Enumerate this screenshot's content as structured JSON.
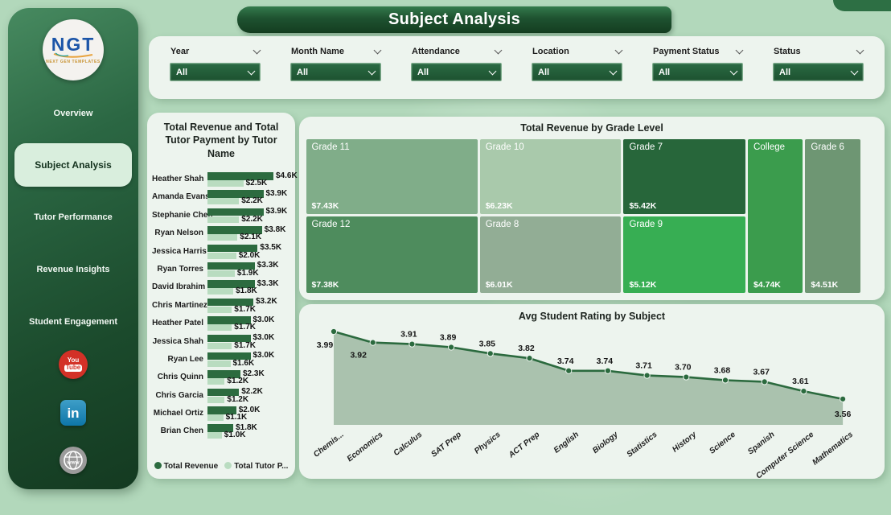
{
  "header": {
    "title": "Subject Analysis"
  },
  "logo": {
    "text": "NGT",
    "tagline": "NEXT GEN TEMPLATES"
  },
  "sidebar": {
    "items": [
      {
        "label": "Overview",
        "active": false
      },
      {
        "label": "Subject Analysis",
        "active": true
      },
      {
        "label": "Tutor Performance",
        "active": false
      },
      {
        "label": "Revenue Insights",
        "active": false
      },
      {
        "label": "Student Engagement",
        "active": false
      }
    ],
    "social": [
      {
        "name": "youtube",
        "text_top": "You",
        "text_bottom": "Tube"
      },
      {
        "name": "linkedin",
        "text": "in"
      },
      {
        "name": "website",
        "text": "www"
      }
    ]
  },
  "filters": [
    {
      "label": "Year",
      "value": "All"
    },
    {
      "label": "Month Name",
      "value": "All"
    },
    {
      "label": "Attendance",
      "value": "All"
    },
    {
      "label": "Location",
      "value": "All"
    },
    {
      "label": "Payment Status",
      "value": "All"
    },
    {
      "label": "Status",
      "value": "All"
    }
  ],
  "colors": {
    "accent_dark_green": "#2c6b3f",
    "accent_light_green": "#b9dcc0",
    "card_bg": "#edf4ee",
    "page_bg": "#b2d8bb",
    "line_color": "#2b6a3e",
    "area_color": "#a6bfaa"
  },
  "chart_data": [
    {
      "type": "bar",
      "title": "Total Revenue and Total Tutor Payment by Tutor Name",
      "orientation": "horizontal",
      "xlim": [
        0,
        4.6
      ],
      "categories": [
        "Heather Shah",
        "Amanda Evans",
        "Stephanie Chen",
        "Ryan Nelson",
        "Jessica Harris",
        "Ryan Torres",
        "David Ibrahim",
        "Chris Martinez",
        "Heather Patel",
        "Jessica Shah",
        "Ryan Lee",
        "Chris Quinn",
        "Chris Garcia",
        "Michael Ortiz",
        "Brian Chen"
      ],
      "series": [
        {
          "name": "Total Revenue",
          "color": "#2c6b3f",
          "values": [
            4.6,
            3.9,
            3.9,
            3.8,
            3.5,
            3.3,
            3.3,
            3.2,
            3.0,
            3.0,
            3.0,
            2.3,
            2.2,
            2.0,
            1.8
          ],
          "labels": [
            "$4.6K",
            "$3.9K",
            "$3.9K",
            "$3.8K",
            "$3.5K",
            "$3.3K",
            "$3.3K",
            "$3.2K",
            "$3.0K",
            "$3.0K",
            "$3.0K",
            "$2.3K",
            "$2.2K",
            "$2.0K",
            "$1.8K"
          ]
        },
        {
          "name": "Total Tutor Payment",
          "legend_label": "Total Tutor P...",
          "color": "#b9dcc0",
          "values": [
            2.5,
            2.2,
            2.2,
            2.1,
            2.0,
            1.9,
            1.8,
            1.7,
            1.7,
            1.7,
            1.6,
            1.2,
            1.2,
            1.1,
            1.0
          ],
          "labels": [
            "$2.5K",
            "$2.2K",
            "$2.2K",
            "$2.1K",
            "$2.0K",
            "$1.9K",
            "$1.8K",
            "$1.7K",
            "$1.7K",
            "$1.7K",
            "$1.6K",
            "$1.2K",
            "$1.2K",
            "$1.1K",
            "$1.0K"
          ]
        }
      ],
      "legend_position": "bottom"
    },
    {
      "type": "treemap",
      "title": "Total Revenue by Grade Level",
      "items": [
        {
          "label": "Grade 11",
          "value": 7.43,
          "value_label": "$7.43K",
          "color": "#80ad89",
          "col": 0,
          "row": 0
        },
        {
          "label": "Grade 12",
          "value": 7.38,
          "value_label": "$7.38K",
          "color": "#4e8c5d",
          "col": 0,
          "row": 1
        },
        {
          "label": "Grade 10",
          "value": 6.23,
          "value_label": "$6.23K",
          "color": "#a9c9ab",
          "col": 1,
          "row": 0
        },
        {
          "label": "Grade 8",
          "value": 6.01,
          "value_label": "$6.01K",
          "color": "#92ad95",
          "col": 1,
          "row": 1
        },
        {
          "label": "Grade 7",
          "value": 5.42,
          "value_label": "$5.42K",
          "color": "#27663a",
          "col": 2,
          "row": 0
        },
        {
          "label": "Grade 9",
          "value": 5.12,
          "value_label": "$5.12K",
          "color": "#37ae53",
          "col": 2,
          "row": 1
        },
        {
          "label": "College",
          "value": 4.74,
          "value_label": "$4.74K",
          "color": "#3b9c4d",
          "col": 3,
          "row": "full"
        },
        {
          "label": "Grade 6",
          "value": 4.51,
          "value_label": "$4.51K",
          "color": "#6e9673",
          "col": 4,
          "row": "full"
        }
      ],
      "layout": {
        "col_widths_pct": [
          31.2,
          25.8,
          22.3,
          10.3,
          10.4
        ],
        "top_row_pct": 48
      }
    },
    {
      "type": "line",
      "title": "Avg Student Rating by Subject",
      "categories": [
        "Chemis...",
        "Economics",
        "Calculus",
        "SAT Prep",
        "Physics",
        "ACT Prep",
        "English",
        "Biology",
        "Statistics",
        "History",
        "Science",
        "Spanish",
        "Computer Science",
        "Mathematics"
      ],
      "values": [
        3.99,
        3.92,
        3.91,
        3.89,
        3.85,
        3.82,
        3.74,
        3.74,
        3.71,
        3.7,
        3.68,
        3.67,
        3.61,
        3.56
      ],
      "labels": [
        "3.99",
        "3.92",
        "3.91",
        "3.89",
        "3.85",
        "3.82",
        "3.74",
        "3.74",
        "3.71",
        "3.70",
        "3.68",
        "3.67",
        "3.61",
        "3.56"
      ],
      "area_fill": true,
      "ylim": [
        3.5,
        4.05
      ],
      "grid": false
    }
  ]
}
